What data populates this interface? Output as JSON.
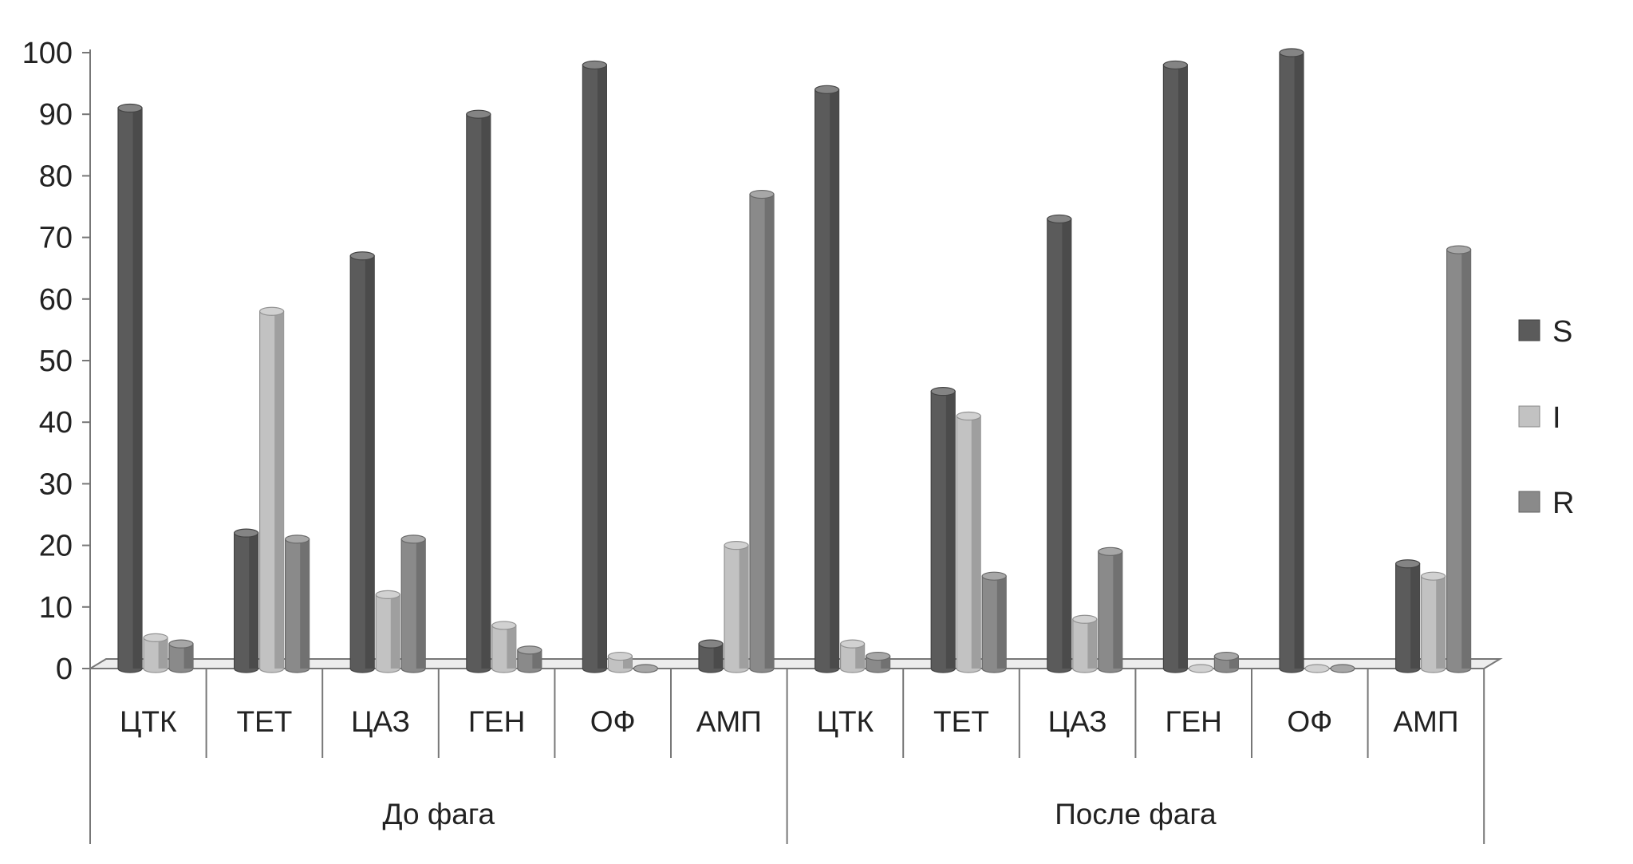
{
  "chart_data": {
    "type": "bar",
    "style": "3d-clustered-column",
    "groups": [
      {
        "label": "До фага",
        "categories": [
          "ЦТК",
          "ТЕТ",
          "ЦАЗ",
          "ГЕН",
          "ОФ",
          "АМП"
        ]
      },
      {
        "label": "После фага",
        "categories": [
          "ЦТК",
          "ТЕТ",
          "ЦАЗ",
          "ГЕН",
          "ОФ",
          "АМП"
        ]
      }
    ],
    "series": [
      {
        "name": "S",
        "color": "#5b5b5b",
        "values": [
          91,
          22,
          67,
          90,
          98,
          4,
          94,
          45,
          73,
          98,
          100,
          17
        ]
      },
      {
        "name": "I",
        "color": "#c2c2c2",
        "values": [
          5,
          58,
          12,
          7,
          2,
          20,
          4,
          41,
          8,
          0,
          0,
          15
        ]
      },
      {
        "name": "R",
        "color": "#8a8a8a",
        "values": [
          4,
          21,
          21,
          3,
          0,
          77,
          2,
          15,
          19,
          2,
          0,
          68
        ]
      }
    ],
    "yticks": [
      "0",
      "10",
      "20",
      "30",
      "40",
      "50",
      "60",
      "70",
      "80",
      "90",
      "100"
    ],
    "ylim": [
      0,
      100
    ],
    "grid": false,
    "legend_position": "right",
    "title": "",
    "xlabel": "",
    "ylabel": ""
  }
}
